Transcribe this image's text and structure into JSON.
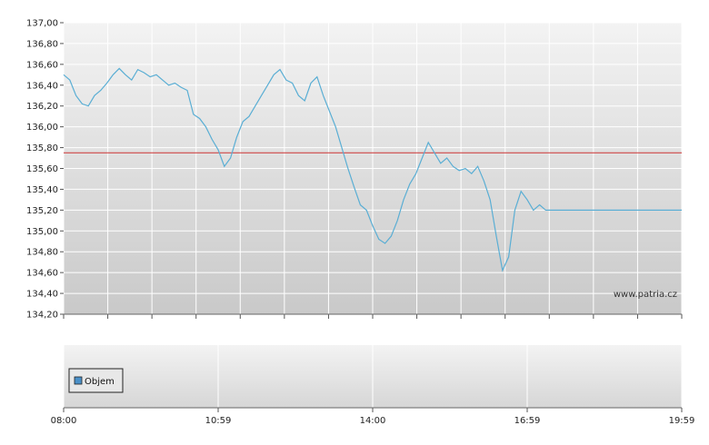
{
  "watermark": "www.patria.cz",
  "legend_label": "Objem",
  "colors": {
    "line": "#5aaed4",
    "reference": "#cc3333",
    "legend_swatch": "#4a90c8"
  },
  "chart_data": [
    {
      "type": "line",
      "ylim": [
        134.2,
        137.0
      ],
      "yticks": [
        "134,20",
        "134,40",
        "134,60",
        "134,80",
        "135,00",
        "135,20",
        "135,40",
        "135,60",
        "135,80",
        "136,00",
        "136,20",
        "136,40",
        "136,60",
        "136,80",
        "137,00"
      ],
      "reference_line": 135.75,
      "grid": true,
      "series": [
        {
          "x_fraction": [
            0.0,
            0.01,
            0.02,
            0.03,
            0.04,
            0.05,
            0.06,
            0.07,
            0.08,
            0.09,
            0.1,
            0.11,
            0.12,
            0.13,
            0.14,
            0.15,
            0.16,
            0.17,
            0.18,
            0.19,
            0.2,
            0.21,
            0.22,
            0.23,
            0.24,
            0.25,
            0.26,
            0.27,
            0.28,
            0.29,
            0.3,
            0.31,
            0.32,
            0.33,
            0.34,
            0.35,
            0.36,
            0.37,
            0.38,
            0.39,
            0.4,
            0.41,
            0.42,
            0.43,
            0.44,
            0.45,
            0.46,
            0.47,
            0.48,
            0.49,
            0.5,
            0.51,
            0.52,
            0.53,
            0.54,
            0.55,
            0.56,
            0.57,
            0.58,
            0.59,
            0.6,
            0.61,
            0.62,
            0.63,
            0.64,
            0.65,
            0.66,
            0.67,
            0.68,
            0.69,
            0.7,
            0.71,
            0.72,
            0.73,
            0.74,
            0.75,
            0.76,
            0.77,
            0.78,
            0.79,
            0.8,
            0.81,
            0.82,
            0.83,
            0.84,
            0.85,
            0.86,
            0.87,
            0.88,
            0.89,
            0.9,
            0.91,
            0.92,
            0.93,
            0.94,
            0.95,
            0.96,
            0.97,
            0.98,
            0.99,
            1.0
          ],
          "values": [
            136.5,
            136.45,
            136.3,
            136.22,
            136.2,
            136.3,
            136.35,
            136.42,
            136.5,
            136.56,
            136.5,
            136.45,
            136.55,
            136.52,
            136.48,
            136.5,
            136.45,
            136.4,
            136.42,
            136.38,
            136.35,
            136.12,
            136.08,
            136.0,
            135.88,
            135.78,
            135.62,
            135.7,
            135.9,
            136.05,
            136.1,
            136.2,
            136.3,
            136.4,
            136.5,
            136.55,
            136.45,
            136.42,
            136.3,
            136.25,
            136.42,
            136.48,
            136.3,
            136.15,
            136.0,
            135.8,
            135.6,
            135.42,
            135.25,
            135.2,
            135.05,
            134.92,
            134.88,
            134.95,
            135.1,
            135.3,
            135.45,
            135.55,
            135.7,
            135.85,
            135.75,
            135.65,
            135.7,
            135.62,
            135.58,
            135.6,
            135.55,
            135.62,
            135.48,
            135.3,
            134.95,
            134.62,
            134.75,
            135.2,
            135.38,
            135.3,
            135.2,
            135.25,
            135.2,
            135.2,
            135.2,
            135.2,
            135.2,
            135.2,
            135.2,
            135.2,
            135.2,
            135.2,
            135.2,
            135.2,
            135.2,
            135.2,
            135.2,
            135.2,
            135.2,
            135.2,
            135.2,
            135.2,
            135.2,
            135.2,
            135.2
          ]
        }
      ]
    },
    {
      "type": "bar",
      "name": "Objem",
      "x_tick_labels": [
        "08:00",
        "10:59",
        "14:00",
        "16:59",
        "19:59"
      ],
      "values": []
    }
  ]
}
